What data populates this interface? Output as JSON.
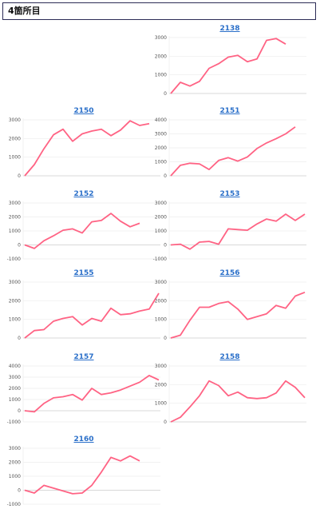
{
  "header": {
    "title": "4箇所目"
  },
  "style": {
    "line_color": "#ff6384",
    "grid_color": "#ececec",
    "axis_color": "#cccccc",
    "title_color": "#2a6fc9"
  },
  "chart_data": [
    {
      "id": "2138",
      "type": "line",
      "title": "2138",
      "ylim": [
        0,
        3000
      ],
      "yticks": [
        0,
        1000,
        2000,
        3000
      ],
      "values": [
        0,
        600,
        400,
        650,
        1350,
        1600,
        1950,
        2050,
        1700,
        1850,
        2850,
        2950,
        2650
      ]
    },
    {
      "id": "2150",
      "type": "line",
      "title": "2150",
      "ylim": [
        0,
        3000
      ],
      "yticks": [
        0,
        1000,
        2000,
        3000
      ],
      "values": [
        0,
        600,
        1450,
        2200,
        2500,
        1850,
        2250,
        2400,
        2500,
        2150,
        2450,
        2950,
        2700,
        2800
      ]
    },
    {
      "id": "2151",
      "type": "line",
      "title": "2151",
      "ylim": [
        0,
        4000
      ],
      "yticks": [
        0,
        1000,
        2000,
        3000,
        4000
      ],
      "values": [
        0,
        750,
        900,
        850,
        450,
        1100,
        1300,
        1050,
        1350,
        1950,
        2350,
        2650,
        3000,
        3500
      ]
    },
    {
      "id": "2152",
      "type": "line",
      "title": "2152",
      "ylim": [
        -1000,
        3000
      ],
      "yticks": [
        -1000,
        0,
        1000,
        2000,
        3000
      ],
      "values": [
        0,
        -250,
        300,
        650,
        1050,
        1150,
        850,
        1650,
        1750,
        2250,
        1700,
        1300,
        1550
      ]
    },
    {
      "id": "2153",
      "type": "line",
      "title": "2153",
      "ylim": [
        -1000,
        3000
      ],
      "yticks": [
        -1000,
        0,
        1000,
        2000,
        3000
      ],
      "values": [
        0,
        50,
        -300,
        200,
        250,
        50,
        1150,
        1100,
        1050,
        1500,
        1850,
        1700,
        2200,
        1750,
        2200
      ]
    },
    {
      "id": "2155",
      "type": "line",
      "title": "2155",
      "ylim": [
        0,
        3000
      ],
      "yticks": [
        0,
        1000,
        2000,
        3000
      ],
      "values": [
        0,
        400,
        450,
        900,
        1050,
        1150,
        700,
        1050,
        900,
        1600,
        1250,
        1300,
        1450,
        1550,
        2400
      ]
    },
    {
      "id": "2156",
      "type": "line",
      "title": "2156",
      "ylim": [
        0,
        3000
      ],
      "yticks": [
        0,
        1000,
        2000,
        3000
      ],
      "values": [
        0,
        150,
        950,
        1650,
        1650,
        1850,
        1950,
        1550,
        1000,
        1150,
        1300,
        1750,
        1600,
        2250,
        2450
      ]
    },
    {
      "id": "2157",
      "type": "line",
      "title": "2157",
      "ylim": [
        -1000,
        4000
      ],
      "yticks": [
        -1000,
        0,
        1000,
        2000,
        3000,
        4000
      ],
      "values": [
        0,
        -100,
        650,
        1150,
        1250,
        1450,
        950,
        2000,
        1450,
        1600,
        1850,
        2200,
        2550,
        3150,
        2750
      ]
    },
    {
      "id": "2158",
      "type": "line",
      "title": "2158",
      "ylim": [
        0,
        3000
      ],
      "yticks": [
        0,
        1000,
        2000,
        3000
      ],
      "values": [
        0,
        250,
        800,
        1400,
        2200,
        1950,
        1400,
        1600,
        1300,
        1250,
        1300,
        1550,
        2200,
        1850,
        1300
      ]
    },
    {
      "id": "2160",
      "type": "line",
      "title": "2160",
      "ylim": [
        -1000,
        3000
      ],
      "yticks": [
        -1000,
        0,
        1000,
        2000,
        3000
      ],
      "values": [
        0,
        -200,
        350,
        150,
        -50,
        -250,
        -200,
        350,
        1300,
        2350,
        2100,
        2450,
        2100
      ]
    }
  ]
}
